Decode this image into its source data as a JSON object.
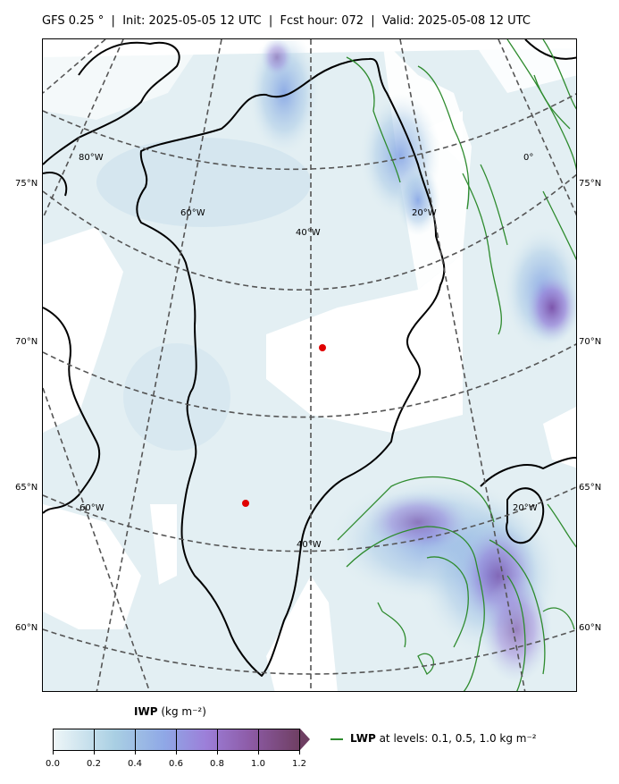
{
  "title": "GFS 0.25$^\\circ$  |  Init: 2025-05-05 12 UTC  |  Fcst hour: 072  |  Valid: 2025-05-08 12 UTC",
  "title_display": "GFS 0.25 °  |  Init: 2025-05-05 12 UTC  |  Fcst hour: 072  |  Valid: 2025-05-08 12 UTC",
  "latitude_labels": [
    "75°N",
    "70°N",
    "65°N",
    "60°N"
  ],
  "longitude_labels_upper": [
    "80°W",
    "60°W",
    "40°W",
    "20°W",
    "0°"
  ],
  "longitude_labels_lower": [
    "60°W",
    "40°W",
    "20°W"
  ],
  "markers": [
    {
      "name": "Summit-area station",
      "color": "#e00000"
    },
    {
      "name": "southern Greenland station",
      "color": "#e00000"
    }
  ],
  "colorbar": {
    "title_bold": "IWP",
    "title_unit": " (kg m⁻²)",
    "ticks": [
      "0.0",
      "0.2",
      "0.4",
      "0.6",
      "0.8",
      "1.0",
      "1.2"
    ],
    "extend": "max",
    "colors": [
      "#eef6f8",
      "#a9cfe3",
      "#8fa8e6",
      "#9c7fd9",
      "#8d5ba6",
      "#6f3f63"
    ]
  },
  "legend": {
    "label_bold": "LWP",
    "label_rest": " at levels: 0.1, 0.5, 1.0  kg m⁻²",
    "line_color": "#2e8b2e"
  },
  "colors": {
    "coast": "#000000",
    "grid": "#555555",
    "lwp_contour": "#2e8b2e",
    "iwp_light": "#dcecf1",
    "iwp_mid": "#9fc3e6",
    "iwp_high": "#8d6ad6"
  }
}
